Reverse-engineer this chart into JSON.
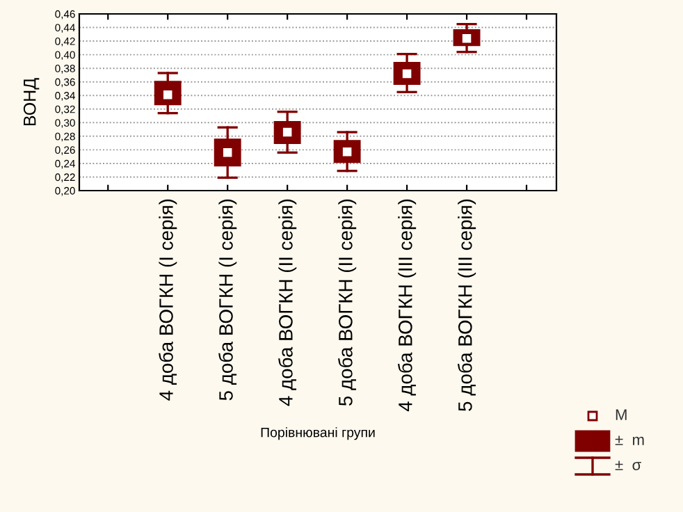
{
  "chart_data": {
    "type": "box",
    "ylabel": "ВОНД",
    "xlabel": "Порівнювані групи",
    "categories": [
      "4 доба ВОГКН (І серія)",
      "5 доба ВОГКН (І серія)",
      "4 доба ВОГКН (ІІ серія)",
      "5 доба ВОГКН (ІІ серія)",
      "4 доба ВОГКН (ІІІ серія)",
      "5 доба ВОГКН (ІІІ серія)"
    ],
    "color": "#800000",
    "boxes": [
      {
        "low": 0.314,
        "q1": 0.327,
        "mean": 0.341,
        "q3": 0.36,
        "high": 0.373
      },
      {
        "low": 0.219,
        "q1": 0.237,
        "mean": 0.256,
        "q3": 0.275,
        "high": 0.293
      },
      {
        "low": 0.256,
        "q1": 0.27,
        "mean": 0.286,
        "q3": 0.301,
        "high": 0.316
      },
      {
        "low": 0.229,
        "q1": 0.242,
        "mean": 0.257,
        "q3": 0.273,
        "high": 0.286
      },
      {
        "low": 0.345,
        "q1": 0.357,
        "mean": 0.372,
        "q3": 0.388,
        "high": 0.401
      },
      {
        "low": 0.404,
        "q1": 0.414,
        "mean": 0.424,
        "q3": 0.436,
        "high": 0.445
      }
    ],
    "ylim": [
      0.2,
      0.46
    ],
    "yticks": [
      {
        "value": 0.2,
        "label": "0,20"
      },
      {
        "value": 0.22,
        "label": "0,22"
      },
      {
        "value": 0.24,
        "label": "0,24"
      },
      {
        "value": 0.26,
        "label": "0,26"
      },
      {
        "value": 0.28,
        "label": "0,28"
      },
      {
        "value": 0.3,
        "label": "0,30"
      },
      {
        "value": 0.32,
        "label": "0,32"
      },
      {
        "value": 0.34,
        "label": "0,34"
      },
      {
        "value": 0.36,
        "label": "0,36"
      },
      {
        "value": 0.38,
        "label": "0,38"
      },
      {
        "value": 0.4,
        "label": "0,40"
      },
      {
        "value": 0.42,
        "label": "0,42"
      },
      {
        "value": 0.44,
        "label": "0,44"
      },
      {
        "value": 0.46,
        "label": "0,46"
      }
    ],
    "grid": "y",
    "annotations": [
      "M",
      "±  m",
      "±  σ"
    ]
  }
}
